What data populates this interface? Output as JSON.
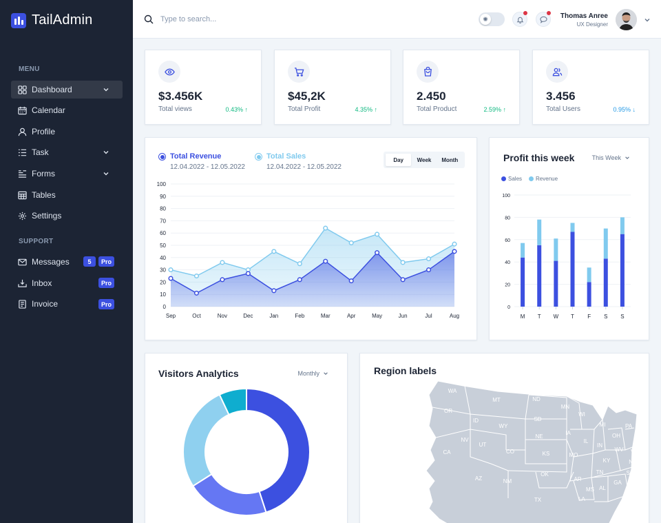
{
  "app": {
    "name": "TailAdmin",
    "accent": "#3c50e0"
  },
  "sidebar": {
    "menu_title": "MENU",
    "support_title": "SUPPORT",
    "items": [
      {
        "label": "Dashboard",
        "icon": "grid-icon"
      },
      {
        "label": "Calendar",
        "icon": "calendar-icon"
      },
      {
        "label": "Profile",
        "icon": "user-icon"
      },
      {
        "label": "Task",
        "icon": "list-icon"
      },
      {
        "label": "Forms",
        "icon": "forms-icon"
      },
      {
        "label": "Tables",
        "icon": "table-icon"
      },
      {
        "label": "Settings",
        "icon": "gear-icon"
      }
    ],
    "support_items": [
      {
        "label": "Messages",
        "icon": "mail-icon",
        "count": "5",
        "pro": "Pro"
      },
      {
        "label": "Inbox",
        "icon": "inbox-icon",
        "pro": "Pro"
      },
      {
        "label": "Invoice",
        "icon": "invoice-icon",
        "pro": "Pro"
      }
    ]
  },
  "header": {
    "search_placeholder": "Type to search...",
    "user_name": "Thomas Anree",
    "user_role": "UX Designer"
  },
  "stats": [
    {
      "value": "$3.456K",
      "label": "Total views",
      "change": "0.43% ↑",
      "trend": "up",
      "icon": "eye-icon"
    },
    {
      "value": "$45,2K",
      "label": "Total Profit",
      "change": "4.35% ↑",
      "trend": "up",
      "icon": "cart-icon"
    },
    {
      "value": "2.450",
      "label": "Total Product",
      "change": "2.59% ↑",
      "trend": "up",
      "icon": "bag-icon"
    },
    {
      "value": "3.456",
      "label": "Total Users",
      "change": "0.95% ↓",
      "trend": "down",
      "icon": "users-icon"
    }
  ],
  "revenue_card": {
    "legend": [
      {
        "name": "Total Revenue",
        "range": "12.04.2022 - 12.05.2022",
        "color": "#3c50e0"
      },
      {
        "name": "Total Sales",
        "range": "12.04.2022 - 12.05.2022",
        "color": "#80caee"
      }
    ],
    "tabs": [
      "Day",
      "Week",
      "Month"
    ]
  },
  "profit_card": {
    "title": "Profit this week",
    "dropdown": "This Week",
    "legend": [
      "Sales",
      "Revenue"
    ]
  },
  "visitors_card": {
    "title": "Visitors Analytics",
    "dropdown": "Monthly"
  },
  "region_card": {
    "title": "Region labels",
    "states": [
      "WA",
      "OR",
      "CA",
      "NV",
      "MT",
      "ID",
      "WY",
      "UT",
      "AZ",
      "CO",
      "NM",
      "ND",
      "SD",
      "NE",
      "KS",
      "OK",
      "TX",
      "MN",
      "IA",
      "MO",
      "AR",
      "LA",
      "WI",
      "IL",
      "MI",
      "IN",
      "OH",
      "KY",
      "TN",
      "MS",
      "AL",
      "GA",
      "FL",
      "SC",
      "NC",
      "VA",
      "WV",
      "PA"
    ]
  },
  "chart_data": [
    {
      "type": "area",
      "x": [
        "Sep",
        "Oct",
        "Nov",
        "Dec",
        "Jan",
        "Feb",
        "Mar",
        "Apr",
        "May",
        "Jun",
        "Jul",
        "Aug"
      ],
      "ylim": [
        0,
        100
      ],
      "yticks": [
        0,
        10,
        20,
        30,
        40,
        50,
        60,
        70,
        80,
        90,
        100
      ],
      "series": [
        {
          "name": "Total Revenue",
          "color": "#3c50e0",
          "values": [
            23,
            11,
            22,
            27,
            13,
            22,
            37,
            21,
            44,
            22,
            30,
            45
          ]
        },
        {
          "name": "Total Sales",
          "color": "#80caee",
          "values": [
            30,
            25,
            36,
            30,
            45,
            35,
            64,
            52,
            59,
            36,
            39,
            51
          ]
        }
      ]
    },
    {
      "type": "bar",
      "categories": [
        "M",
        "T",
        "W",
        "T",
        "F",
        "S",
        "S"
      ],
      "ylim": [
        0,
        100
      ],
      "yticks": [
        0,
        20,
        40,
        60,
        80,
        100
      ],
      "series": [
        {
          "name": "Sales",
          "color": "#3c50e0",
          "values": [
            44,
            55,
            41,
            67,
            22,
            43,
            65
          ]
        },
        {
          "name": "Revenue",
          "color": "#80caee",
          "values": [
            13,
            23,
            20,
            8,
            13,
            27,
            15
          ]
        }
      ]
    },
    {
      "type": "pie",
      "labels": [
        "",
        "",
        "",
        ""
      ],
      "values": [
        45,
        21,
        27,
        7
      ],
      "colors": [
        "#3c50e0",
        "#6577f3",
        "#8fd0ef",
        "#0fadcf"
      ]
    }
  ]
}
